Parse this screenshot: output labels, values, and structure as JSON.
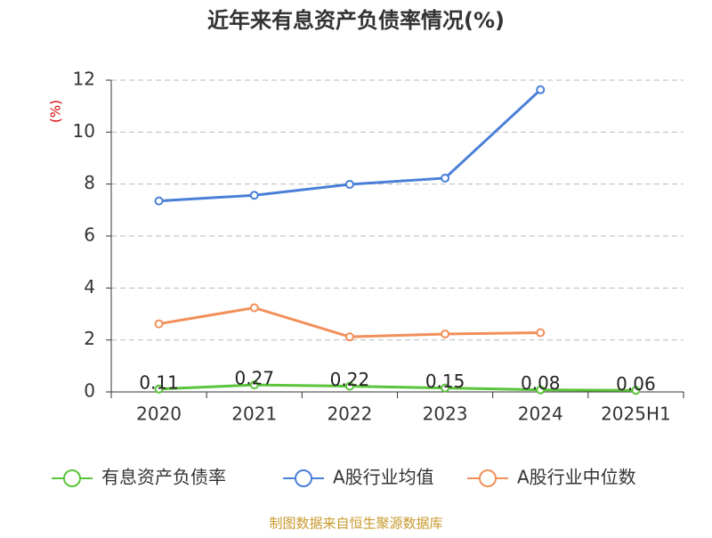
{
  "chart_data": {
    "type": "line",
    "title": "近年来有息资产负债率情况(%)",
    "y_label": "(%)",
    "categories": [
      "2020",
      "2021",
      "2022",
      "2023",
      "2024",
      "2025H1"
    ],
    "series": [
      {
        "name": "有息资产负债率",
        "color": "#5ac43a",
        "values": [
          0.11,
          0.27,
          0.22,
          0.15,
          0.08,
          0.06
        ],
        "show_labels": true
      },
      {
        "name": "A股行业均值",
        "color": "#4a7fd8",
        "values": [
          7.35,
          7.57,
          7.99,
          8.23,
          11.63,
          null
        ]
      },
      {
        "name": "A股行业中位数",
        "color": "#f28f5a",
        "values": [
          2.62,
          3.24,
          2.12,
          2.23,
          2.28,
          null
        ]
      }
    ],
    "ylim": [
      0,
      12
    ],
    "yticks": [
      0,
      2,
      4,
      6,
      8,
      10,
      12
    ],
    "grid": true,
    "source": "制图数据来自恒生聚源数据库"
  }
}
